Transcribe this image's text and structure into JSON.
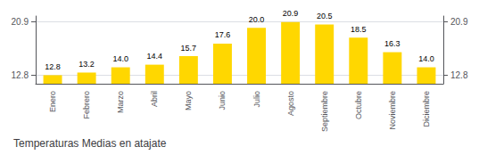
{
  "chart_data": {
    "type": "bar",
    "title": "Temperaturas Medias en atajate",
    "categories": [
      "Enero",
      "Febrero",
      "Marzo",
      "Abril",
      "Mayo",
      "Junio",
      "Julio",
      "Agosto",
      "Septiembre",
      "Octubre",
      "Noviembre",
      "Diciembre"
    ],
    "values": [
      12.8,
      13.2,
      14.0,
      14.4,
      15.7,
      17.6,
      20.0,
      20.9,
      20.5,
      18.5,
      16.3,
      14.0
    ],
    "value_labels": [
      "12.8",
      "13.2",
      "14.0",
      "14.4",
      "15.7",
      "17.6",
      "20.0",
      "20.9",
      "20.5",
      "18.5",
      "16.3",
      "14.0"
    ],
    "data_labels": true,
    "color": "#FFD700",
    "ylim": [
      11.5,
      21.8
    ],
    "yticks": [
      12.8,
      20.9
    ],
    "y2lim": [
      11.5,
      21.8
    ],
    "y2ticks": [
      12.8,
      20.9
    ],
    "grid": true
  }
}
